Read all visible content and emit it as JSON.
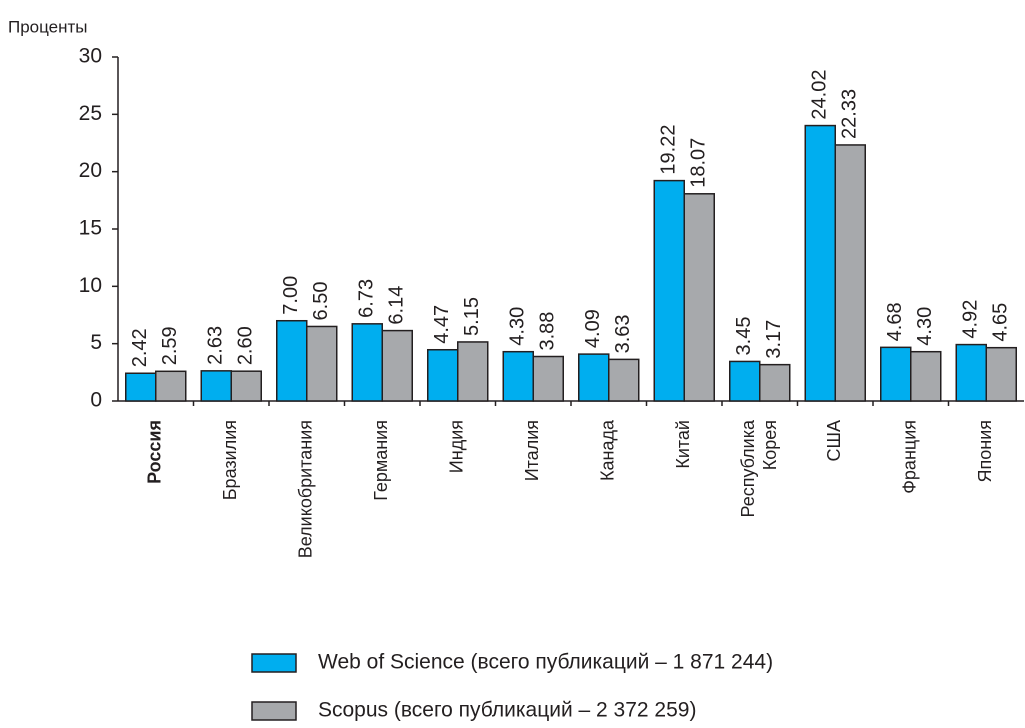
{
  "chart_data": {
    "type": "bar",
    "y_label": "Проценты",
    "categories": [
      "Россия",
      "Бразилия",
      "Великобритания",
      "Германия",
      "Индия",
      "Италия",
      "Канада",
      "Китай",
      "Республика Корея",
      "США",
      "Франция",
      "Япония"
    ],
    "series": [
      {
        "name": "Web of Science (всего публикаций – 1 871 244)",
        "color": "#00aeef",
        "values": [
          2.42,
          2.63,
          7.0,
          6.73,
          4.47,
          4.3,
          4.09,
          19.22,
          3.45,
          24.02,
          4.68,
          4.92
        ],
        "value_labels": [
          "2.42",
          "2.63",
          "7.00",
          "6.73",
          "4.47",
          "4.30",
          "4.09",
          "19.22",
          "3.45",
          "24.02",
          "4.68",
          "4.92"
        ]
      },
      {
        "name": "Scopus (всего публикаций – 2 372 259)",
        "color": "#a7a9ac",
        "values": [
          2.59,
          2.6,
          6.5,
          6.14,
          5.15,
          3.88,
          3.63,
          18.07,
          3.17,
          22.33,
          4.3,
          4.65
        ],
        "value_labels": [
          "2.59",
          "2.60",
          "6.50",
          "6.14",
          "5.15",
          "3.88",
          "3.63",
          "18.07",
          "3.17",
          "22.33",
          "4.30",
          "4.65"
        ]
      }
    ],
    "ylim": [
      0,
      30
    ],
    "yticks": [
      0,
      5,
      10,
      15,
      20,
      25,
      30
    ],
    "grid": false
  }
}
